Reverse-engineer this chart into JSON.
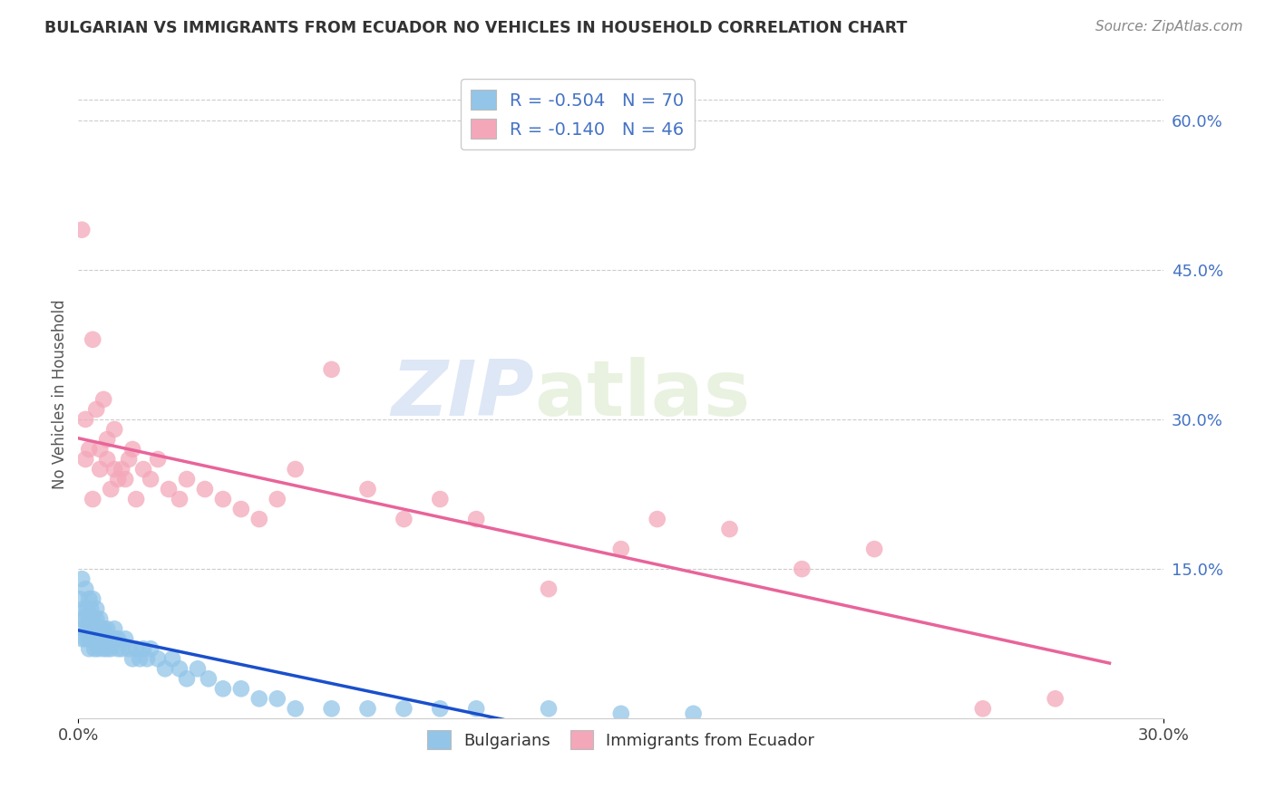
{
  "title": "BULGARIAN VS IMMIGRANTS FROM ECUADOR NO VEHICLES IN HOUSEHOLD CORRELATION CHART",
  "source": "Source: ZipAtlas.com",
  "ylabel": "No Vehicles in Household",
  "ylabel_right_labels": [
    "60.0%",
    "45.0%",
    "30.0%",
    "15.0%"
  ],
  "ylabel_right_positions": [
    0.6,
    0.45,
    0.3,
    0.15
  ],
  "watermark_zip": "ZIP",
  "watermark_atlas": "atlas",
  "legend_r_bulgarian": "-0.504",
  "legend_n_bulgarian": "70",
  "legend_r_ecuador": "-0.140",
  "legend_n_ecuador": "46",
  "bulgarian_color": "#92c5e8",
  "ecuador_color": "#f4a7b9",
  "trend_bulgarian_color": "#1a4fcc",
  "trend_ecuador_color": "#e8649a",
  "bg_color": "#ffffff",
  "xlim": [
    0.0,
    0.3
  ],
  "ylim": [
    0.0,
    0.65
  ],
  "bulgarians_x": [
    0.0005,
    0.001,
    0.001,
    0.001,
    0.0015,
    0.0015,
    0.002,
    0.002,
    0.002,
    0.0025,
    0.0025,
    0.003,
    0.003,
    0.003,
    0.003,
    0.0035,
    0.0035,
    0.004,
    0.004,
    0.004,
    0.0045,
    0.0045,
    0.005,
    0.005,
    0.005,
    0.005,
    0.0055,
    0.006,
    0.006,
    0.006,
    0.007,
    0.007,
    0.007,
    0.008,
    0.008,
    0.009,
    0.009,
    0.01,
    0.01,
    0.011,
    0.011,
    0.012,
    0.013,
    0.014,
    0.015,
    0.016,
    0.017,
    0.018,
    0.019,
    0.02,
    0.022,
    0.024,
    0.026,
    0.028,
    0.03,
    0.033,
    0.036,
    0.04,
    0.045,
    0.05,
    0.055,
    0.06,
    0.07,
    0.08,
    0.09,
    0.1,
    0.11,
    0.13,
    0.15,
    0.17
  ],
  "bulgarians_y": [
    0.12,
    0.1,
    0.08,
    0.14,
    0.09,
    0.11,
    0.1,
    0.08,
    0.13,
    0.09,
    0.11,
    0.1,
    0.08,
    0.12,
    0.07,
    0.09,
    0.11,
    0.1,
    0.08,
    0.12,
    0.09,
    0.07,
    0.11,
    0.09,
    0.08,
    0.1,
    0.07,
    0.09,
    0.08,
    0.1,
    0.09,
    0.07,
    0.08,
    0.07,
    0.09,
    0.08,
    0.07,
    0.09,
    0.08,
    0.07,
    0.08,
    0.07,
    0.08,
    0.07,
    0.06,
    0.07,
    0.06,
    0.07,
    0.06,
    0.07,
    0.06,
    0.05,
    0.06,
    0.05,
    0.04,
    0.05,
    0.04,
    0.03,
    0.03,
    0.02,
    0.02,
    0.01,
    0.01,
    0.01,
    0.01,
    0.01,
    0.01,
    0.01,
    0.005,
    0.005
  ],
  "ecuador_x": [
    0.001,
    0.002,
    0.002,
    0.003,
    0.004,
    0.004,
    0.005,
    0.006,
    0.006,
    0.007,
    0.008,
    0.008,
    0.009,
    0.01,
    0.01,
    0.011,
    0.012,
    0.013,
    0.014,
    0.015,
    0.016,
    0.018,
    0.02,
    0.022,
    0.025,
    0.028,
    0.03,
    0.035,
    0.04,
    0.045,
    0.05,
    0.055,
    0.06,
    0.07,
    0.08,
    0.09,
    0.1,
    0.11,
    0.13,
    0.15,
    0.16,
    0.18,
    0.2,
    0.22,
    0.25,
    0.27
  ],
  "ecuador_y": [
    0.49,
    0.26,
    0.3,
    0.27,
    0.38,
    0.22,
    0.31,
    0.27,
    0.25,
    0.32,
    0.26,
    0.28,
    0.23,
    0.25,
    0.29,
    0.24,
    0.25,
    0.24,
    0.26,
    0.27,
    0.22,
    0.25,
    0.24,
    0.26,
    0.23,
    0.22,
    0.24,
    0.23,
    0.22,
    0.21,
    0.2,
    0.22,
    0.25,
    0.35,
    0.23,
    0.2,
    0.22,
    0.2,
    0.13,
    0.17,
    0.2,
    0.19,
    0.15,
    0.17,
    0.01,
    0.02
  ]
}
